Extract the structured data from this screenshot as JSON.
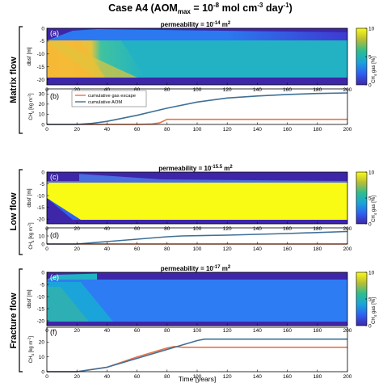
{
  "figure": {
    "title": "Case A4 (AOM",
    "title_sub": "max",
    "title_mid": " = 10",
    "title_exp1": "-8",
    "title_units": " mol cm",
    "title_exp2": "-3",
    "title_day": " day",
    "title_exp3": "-1",
    "title_end": ")",
    "xlabel": "Time [years]"
  },
  "rows": [
    {
      "label": "Matrix flow",
      "perm_label": "permeability = 10",
      "perm_exp": "-14",
      "perm_unit": " m",
      "perm_unit_exp": "2",
      "map_tag": "(a)",
      "line_tag": "(b)"
    },
    {
      "label": "Low flow",
      "perm_label": "permeability = 10",
      "perm_exp": "-15.5",
      "perm_unit": " m",
      "perm_unit_exp": "2",
      "map_tag": "(c)",
      "line_tag": "(d)"
    },
    {
      "label": "Fracture flow",
      "perm_label": "permeability = 10",
      "perm_exp": "-17",
      "perm_unit": " m",
      "perm_unit_exp": "2",
      "map_tag": "(e)",
      "line_tag": "(f)"
    }
  ],
  "axes": {
    "map_ylabel": "dbsf [m]",
    "line_ylabel_a": "CH",
    "line_ylabel_sub": "4",
    "line_ylabel_b": " [kg m",
    "line_ylabel_exp": "-2",
    "line_ylabel_c": "]",
    "colorbar_label": "CH",
    "colorbar_label_sub": "4",
    "colorbar_label_rest": " gas [%]"
  },
  "legend": {
    "gas": "cumulative gas escape",
    "aom": "cumulative AOM"
  },
  "colors": {
    "gas": "#e8734a",
    "aom": "#3f6f96",
    "low": "#3e26a8",
    "high": "#f9fb15"
  },
  "chart_data": [
    {
      "type": "heatmap",
      "panel": "(a)",
      "x_range": [
        0,
        200
      ],
      "y_range": [
        -22,
        0
      ],
      "yticks": [
        0,
        -5,
        -10,
        -15,
        -20
      ],
      "xticks": [
        0,
        20,
        40,
        60,
        80,
        100,
        120,
        140,
        160,
        180,
        200
      ],
      "colorbar": {
        "range": [
          0,
          10
        ],
        "ticks": [
          0,
          5,
          10
        ]
      }
    },
    {
      "type": "line",
      "panel": "(b)",
      "x_range": [
        0,
        200
      ],
      "y_range": [
        0,
        35
      ],
      "yticks": [
        0,
        10,
        20,
        30
      ],
      "xticks": [
        0,
        20,
        40,
        60,
        80,
        100,
        120,
        140,
        160,
        180,
        200
      ],
      "series": [
        {
          "name": "cumulative gas escape",
          "x": [
            0,
            20,
            40,
            60,
            70,
            75,
            80,
            100,
            120,
            160,
            200
          ],
          "y": [
            0,
            0,
            0,
            0,
            0.5,
            1.5,
            5,
            5,
            5,
            5,
            5
          ]
        },
        {
          "name": "cumulative AOM",
          "x": [
            0,
            20,
            30,
            40,
            60,
            80,
            100,
            120,
            140,
            160,
            180,
            200
          ],
          "y": [
            0,
            0,
            1,
            3,
            9,
            16,
            22,
            26,
            28,
            29.5,
            30.5,
            31
          ]
        }
      ]
    },
    {
      "type": "heatmap",
      "panel": "(c)",
      "x_range": [
        0,
        200
      ],
      "y_range": [
        -22,
        0
      ],
      "yticks": [
        0,
        -5,
        -10,
        -15,
        -20
      ],
      "xticks": [
        0,
        20,
        40,
        60,
        80,
        100,
        120,
        140,
        160,
        180,
        200
      ],
      "colorbar": {
        "range": [
          0,
          10
        ],
        "ticks": [
          0,
          5,
          10
        ]
      }
    },
    {
      "type": "line",
      "panel": "(d)",
      "x_range": [
        0,
        200
      ],
      "y_range": [
        0,
        20
      ],
      "yticks": [
        0,
        10
      ],
      "xticks": [
        0,
        20,
        40,
        60,
        80,
        100,
        120,
        140,
        160,
        180,
        200
      ],
      "series": [
        {
          "name": "cumulative gas escape",
          "x": [
            0,
            200
          ],
          "y": [
            0,
            0
          ]
        },
        {
          "name": "cumulative AOM",
          "x": [
            0,
            20,
            40,
            60,
            80,
            90,
            120,
            160,
            200
          ],
          "y": [
            0,
            0,
            3,
            6,
            9,
            10,
            11,
            13,
            15.5
          ]
        }
      ]
    },
    {
      "type": "heatmap",
      "panel": "(e)",
      "x_range": [
        0,
        200
      ],
      "y_range": [
        -22,
        0
      ],
      "yticks": [
        0,
        -5,
        -10,
        -15,
        -20
      ],
      "xticks": [
        0,
        20,
        40,
        60,
        80,
        100,
        120,
        140,
        160,
        180,
        200
      ],
      "colorbar": {
        "range": [
          0,
          10
        ],
        "ticks": [
          0,
          5,
          10
        ]
      }
    },
    {
      "type": "line",
      "panel": "(f)",
      "x_range": [
        0,
        200
      ],
      "y_range": [
        0,
        30
      ],
      "yticks": [
        0,
        10,
        20
      ],
      "xticks": [
        0,
        20,
        40,
        60,
        80,
        100,
        120,
        140,
        160,
        180,
        200
      ],
      "series": [
        {
          "name": "cumulative gas escape",
          "x": [
            0,
            20,
            40,
            60,
            80,
            85,
            90,
            200
          ],
          "y": [
            0,
            0,
            3,
            10,
            16,
            17,
            16.5,
            16.5
          ]
        },
        {
          "name": "cumulative AOM",
          "x": [
            0,
            20,
            40,
            60,
            80,
            100,
            105,
            200
          ],
          "y": [
            0,
            0,
            3,
            9,
            15,
            21,
            22,
            22
          ]
        }
      ]
    }
  ]
}
